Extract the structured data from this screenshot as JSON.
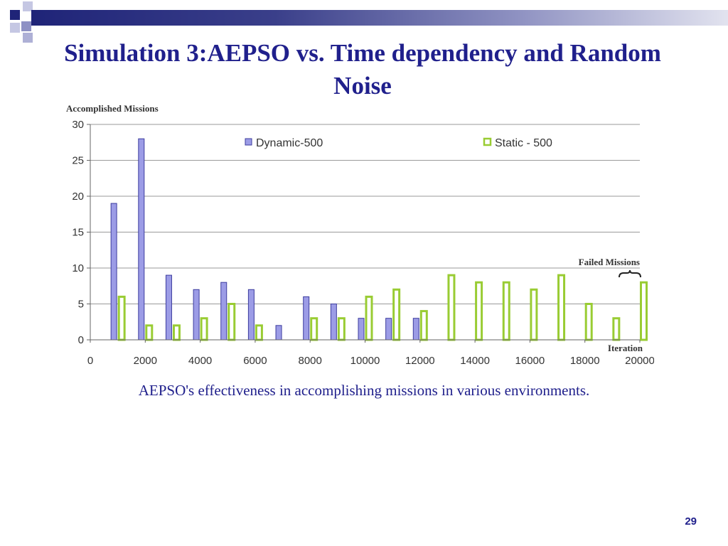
{
  "slide": {
    "title": "Simulation 3:AEPSO vs. Time dependency and Random Noise",
    "caption": "AEPSO's effectiveness in accomplishing missions in various environments.",
    "page_number": "29"
  },
  "colors": {
    "title": "#20208c",
    "dynamic_bar_fill": "#9c9ce6",
    "dynamic_bar_stroke": "#3d3d9e",
    "static_bar_stroke": "#99cc33",
    "grid": "#9a9a9a"
  },
  "chart_data": {
    "type": "bar",
    "ylabel": "Accomplished Missions",
    "xlabel": "Iteration",
    "annotation": "Failed Missions",
    "ylim": [
      0,
      30
    ],
    "yticks": [
      0,
      5,
      10,
      15,
      20,
      25,
      30
    ],
    "xlim": [
      0,
      20000
    ],
    "xticks": [
      0,
      2000,
      4000,
      6000,
      8000,
      10000,
      12000,
      14000,
      16000,
      18000,
      20000
    ],
    "grid": true,
    "legend_placement": "top",
    "categories": [
      1000,
      2000,
      3000,
      4000,
      5000,
      6000,
      7000,
      8000,
      9000,
      10000,
      11000,
      12000,
      13000,
      14000,
      15000,
      16000,
      17000,
      18000,
      19000,
      20000
    ],
    "series": [
      {
        "name": "Dynamic-500",
        "values": [
          19,
          28,
          9,
          7,
          8,
          7,
          2,
          6,
          5,
          3,
          3,
          3,
          0,
          0,
          0,
          0,
          0,
          0,
          0,
          0
        ]
      },
      {
        "name": "Static - 500",
        "values": [
          6,
          2,
          2,
          3,
          5,
          2,
          0,
          3,
          3,
          6,
          7,
          4,
          9,
          8,
          8,
          7,
          9,
          5,
          3,
          8
        ]
      }
    ]
  }
}
